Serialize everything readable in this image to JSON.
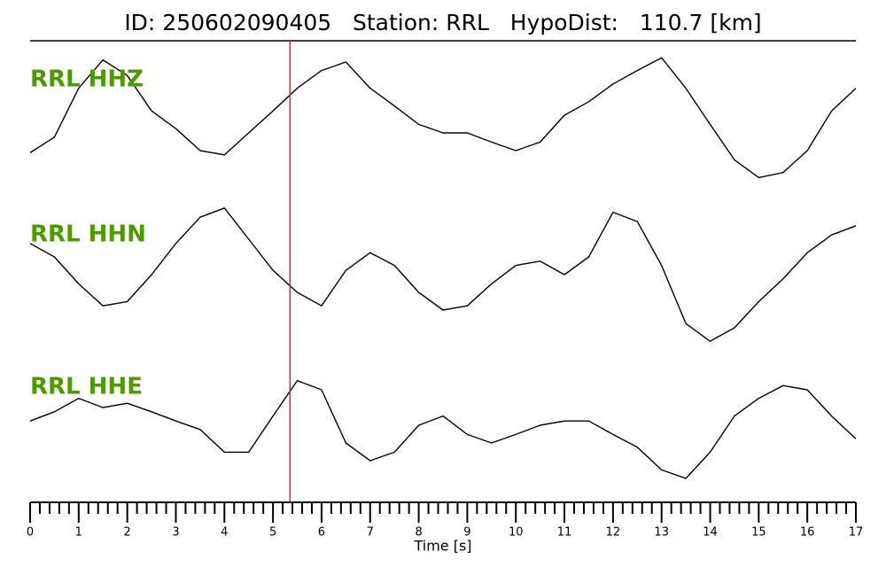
{
  "chart_data": {
    "type": "line",
    "title": "ID: 250602090405   Station: RRL   HypoDist:   110.7 [km]",
    "xlabel": "Time [s]",
    "x": [
      0,
      0.5,
      1,
      1.5,
      2,
      2.5,
      3,
      3.5,
      4,
      4.5,
      5,
      5.5,
      6,
      6.5,
      7,
      7.5,
      8,
      8.5,
      9,
      9.5,
      10,
      10.5,
      11,
      11.5,
      12,
      12.5,
      13,
      13.5,
      14,
      14.5,
      15,
      15.5,
      16,
      16.5,
      17
    ],
    "xlim": [
      0,
      17
    ],
    "xticks": [
      0,
      1,
      2,
      3,
      4,
      5,
      6,
      7,
      8,
      9,
      10,
      11,
      12,
      13,
      14,
      15,
      16,
      17
    ],
    "pick_time": 5.35,
    "pick_color": "#e8221d",
    "label_color": "#4c9a00",
    "series": [
      {
        "name": "RRL HHZ",
        "color": "#000000",
        "values": [
          -0.53,
          -0.31,
          0.38,
          0.78,
          0.56,
          0.06,
          -0.19,
          -0.5,
          -0.56,
          -0.25,
          0.06,
          0.38,
          0.63,
          0.75,
          0.38,
          0.13,
          -0.13,
          -0.25,
          -0.25,
          -0.38,
          -0.5,
          -0.38,
          0,
          0.19,
          0.44,
          0.63,
          0.81,
          0.38,
          -0.13,
          -0.63,
          -0.88,
          -0.81,
          -0.5,
          0.06,
          0.38
        ]
      },
      {
        "name": "RRL HHN",
        "color": "#000000",
        "values": [
          0.44,
          0.25,
          -0.13,
          -0.44,
          -0.38,
          0,
          0.44,
          0.81,
          0.94,
          0.5,
          0.06,
          -0.25,
          -0.44,
          0.06,
          0.31,
          0.13,
          -0.25,
          -0.5,
          -0.44,
          -0.13,
          0.13,
          0.19,
          0,
          0.25,
          0.88,
          0.75,
          0.13,
          -0.69,
          -0.94,
          -0.75,
          -0.38,
          -0.06,
          0.31,
          0.56,
          0.69
        ]
      },
      {
        "name": "RRL HHE",
        "color": "#000000",
        "values": [
          0.06,
          0.19,
          0.38,
          0.25,
          0.31,
          0.19,
          0.06,
          -0.06,
          -0.38,
          -0.38,
          0.13,
          0.63,
          0.5,
          -0.25,
          -0.5,
          -0.38,
          0,
          0.13,
          -0.13,
          -0.25,
          -0.13,
          0,
          0.06,
          0.06,
          -0.13,
          -0.31,
          -0.63,
          -0.75,
          -0.38,
          0.13,
          0.38,
          0.56,
          0.5,
          0.13,
          -0.19
        ]
      }
    ]
  }
}
